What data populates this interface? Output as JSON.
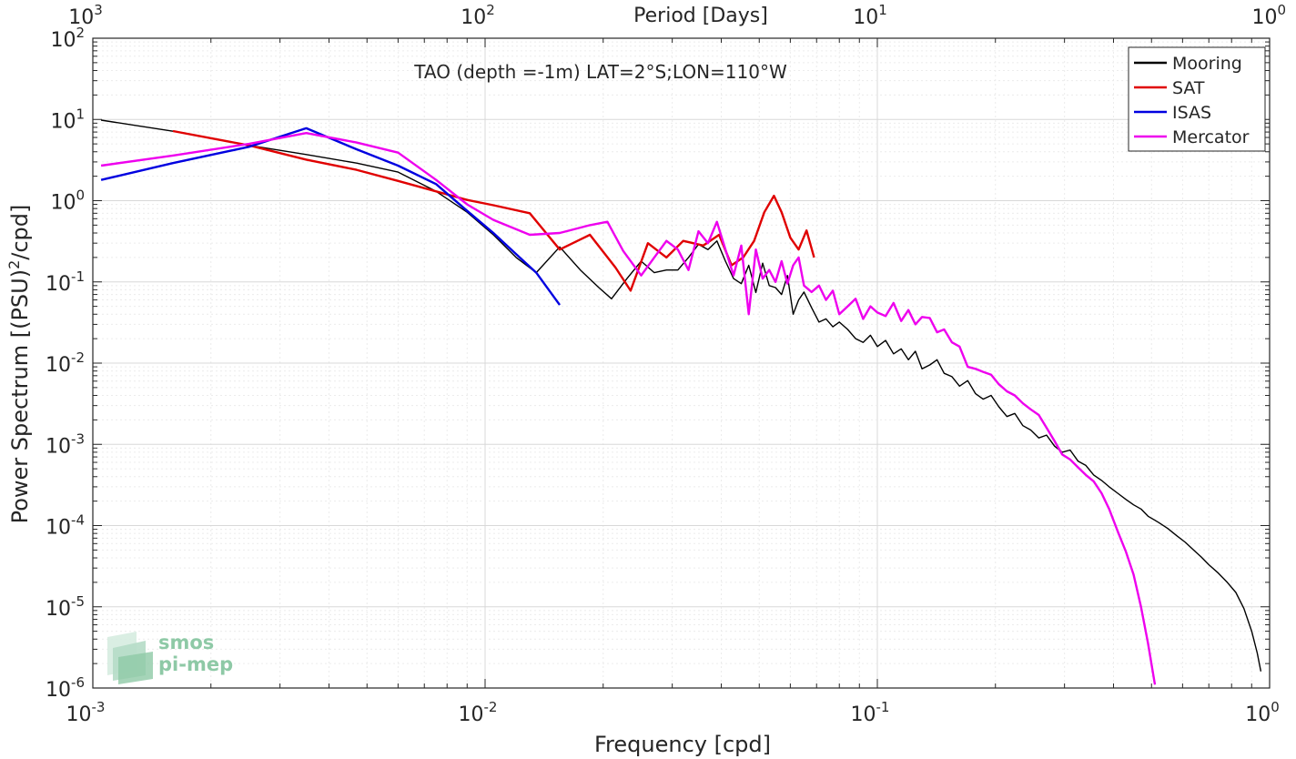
{
  "chart_data": {
    "type": "line",
    "title": "TAO (depth =-1m) LAT=2°S;LON=110°W",
    "xlabel": "Frequency [cpd]",
    "ylabel_prefix": "Power Spectrum [(PSU)",
    "ylabel_exp": "2",
    "ylabel_suffix": "/cpd]",
    "top_xlabel": "Period [Days]",
    "xscale": "log",
    "yscale": "log",
    "xlim": [
      0.001,
      1
    ],
    "ylim": [
      1e-06,
      100
    ],
    "grid": true,
    "minor_grid": true,
    "legend_position": "top-right",
    "x_ticks": [
      {
        "value": 0.001,
        "base": "10",
        "exp": "-3"
      },
      {
        "value": 0.01,
        "base": "10",
        "exp": "-2"
      },
      {
        "value": 0.1,
        "base": "10",
        "exp": "-1"
      },
      {
        "value": 1,
        "base": "10",
        "exp": "0"
      }
    ],
    "y_ticks": [
      {
        "value": 1e-06,
        "base": "10",
        "exp": "-6"
      },
      {
        "value": 1e-05,
        "base": "10",
        "exp": "-5"
      },
      {
        "value": 0.0001,
        "base": "10",
        "exp": "-4"
      },
      {
        "value": 0.001,
        "base": "10",
        "exp": "-3"
      },
      {
        "value": 0.01,
        "base": "10",
        "exp": "-2"
      },
      {
        "value": 0.1,
        "base": "10",
        "exp": "-1"
      },
      {
        "value": 1,
        "base": "10",
        "exp": "0"
      },
      {
        "value": 10,
        "base": "10",
        "exp": "1"
      },
      {
        "value": 100,
        "base": "10",
        "exp": "2"
      }
    ],
    "top_ticks": [
      {
        "freq": 0.001,
        "base": "10",
        "exp": "3"
      },
      {
        "freq": 0.01,
        "base": "10",
        "exp": "2"
      },
      {
        "freq": 0.1,
        "base": "10",
        "exp": "1"
      },
      {
        "freq": 1,
        "base": "10",
        "exp": "0"
      }
    ],
    "series": [
      {
        "name": "Mooring",
        "color": "#000000",
        "x": [
          0.00105,
          0.00165,
          0.0025,
          0.0035,
          0.0047,
          0.006,
          0.0075,
          0.009,
          0.0105,
          0.012,
          0.0135,
          0.0155,
          0.0175,
          0.0195,
          0.021,
          0.023,
          0.025,
          0.027,
          0.029,
          0.031,
          0.033,
          0.035,
          0.037,
          0.039,
          0.041,
          0.043,
          0.045,
          0.047,
          0.049,
          0.051,
          0.053,
          0.055,
          0.057,
          0.059,
          0.061,
          0.063,
          0.065,
          0.068,
          0.071,
          0.074,
          0.077,
          0.08,
          0.084,
          0.088,
          0.092,
          0.096,
          0.1,
          0.105,
          0.11,
          0.115,
          0.12,
          0.125,
          0.13,
          0.136,
          0.142,
          0.148,
          0.155,
          0.162,
          0.17,
          0.178,
          0.186,
          0.195,
          0.204,
          0.214,
          0.224,
          0.235,
          0.246,
          0.258,
          0.27,
          0.283,
          0.296,
          0.31,
          0.325,
          0.34,
          0.356,
          0.373,
          0.39,
          0.41,
          0.43,
          0.45,
          0.47,
          0.49,
          0.52,
          0.55,
          0.58,
          0.61,
          0.64,
          0.67,
          0.7,
          0.74,
          0.78,
          0.82,
          0.86,
          0.9,
          0.93,
          0.95
        ],
        "y": [
          9.8,
          7.0,
          4.8,
          3.7,
          2.9,
          2.25,
          1.3,
          0.72,
          0.38,
          0.2,
          0.13,
          0.27,
          0.14,
          0.085,
          0.062,
          0.11,
          0.18,
          0.13,
          0.14,
          0.14,
          0.2,
          0.29,
          0.25,
          0.32,
          0.18,
          0.11,
          0.095,
          0.16,
          0.074,
          0.17,
          0.09,
          0.085,
          0.07,
          0.12,
          0.04,
          0.06,
          0.075,
          0.048,
          0.032,
          0.035,
          0.028,
          0.032,
          0.026,
          0.02,
          0.018,
          0.022,
          0.016,
          0.019,
          0.013,
          0.015,
          0.011,
          0.014,
          0.0085,
          0.0095,
          0.011,
          0.0075,
          0.0068,
          0.0052,
          0.0061,
          0.0042,
          0.0036,
          0.004,
          0.0029,
          0.0022,
          0.0024,
          0.0017,
          0.0015,
          0.0012,
          0.0013,
          0.00095,
          0.0008,
          0.00085,
          0.00062,
          0.00055,
          0.00042,
          0.00036,
          0.0003,
          0.00025,
          0.00021,
          0.00018,
          0.00016,
          0.00013,
          0.00011,
          9.2e-05,
          7.5e-05,
          6.2e-05,
          5e-05,
          4.1e-05,
          3.3e-05,
          2.6e-05,
          2e-05,
          1.5e-05,
          9.5e-06,
          5e-06,
          2.7e-06,
          1.6e-06
        ]
      },
      {
        "name": "SAT",
        "color": "#e00000",
        "x": [
          0.0016,
          0.0025,
          0.0035,
          0.0047,
          0.006,
          0.0075,
          0.009,
          0.0105,
          0.013,
          0.0155,
          0.0185,
          0.0215,
          0.0235,
          0.026,
          0.029,
          0.032,
          0.036,
          0.0395,
          0.0425,
          0.0455,
          0.0485,
          0.0515,
          0.0545,
          0.057,
          0.06,
          0.063,
          0.066,
          0.069
        ],
        "y": [
          7.2,
          4.8,
          3.2,
          2.4,
          1.75,
          1.3,
          1.02,
          0.88,
          0.7,
          0.25,
          0.38,
          0.15,
          0.078,
          0.3,
          0.2,
          0.32,
          0.28,
          0.38,
          0.16,
          0.2,
          0.32,
          0.72,
          1.15,
          0.72,
          0.35,
          0.25,
          0.43,
          0.2
        ]
      },
      {
        "name": "ISAS",
        "color": "#0000e0",
        "x": [
          0.00105,
          0.0016,
          0.0025,
          0.0035,
          0.0047,
          0.006,
          0.0075,
          0.009,
          0.0105,
          0.012,
          0.0135,
          0.0155
        ],
        "y": [
          1.8,
          2.9,
          4.6,
          7.8,
          4.3,
          2.7,
          1.6,
          0.75,
          0.4,
          0.22,
          0.13,
          0.052
        ]
      },
      {
        "name": "Mercator",
        "color": "#ee00ee",
        "x": [
          0.00105,
          0.0016,
          0.0025,
          0.0035,
          0.0047,
          0.006,
          0.0075,
          0.009,
          0.0105,
          0.013,
          0.0155,
          0.0185,
          0.0205,
          0.0225,
          0.025,
          0.027,
          0.029,
          0.031,
          0.033,
          0.035,
          0.037,
          0.039,
          0.041,
          0.043,
          0.045,
          0.047,
          0.049,
          0.051,
          0.053,
          0.055,
          0.057,
          0.059,
          0.061,
          0.063,
          0.065,
          0.068,
          0.071,
          0.074,
          0.077,
          0.08,
          0.084,
          0.088,
          0.092,
          0.096,
          0.1,
          0.105,
          0.11,
          0.115,
          0.12,
          0.125,
          0.13,
          0.136,
          0.142,
          0.148,
          0.155,
          0.162,
          0.17,
          0.178,
          0.186,
          0.195,
          0.204,
          0.214,
          0.224,
          0.235,
          0.246,
          0.258,
          0.27,
          0.283,
          0.296,
          0.31,
          0.325,
          0.34,
          0.356,
          0.373,
          0.39,
          0.41,
          0.43,
          0.45,
          0.47,
          0.49,
          0.51
        ],
        "y": [
          2.7,
          3.6,
          5.0,
          6.8,
          5.2,
          3.9,
          1.8,
          0.9,
          0.58,
          0.38,
          0.4,
          0.5,
          0.55,
          0.24,
          0.12,
          0.2,
          0.32,
          0.25,
          0.14,
          0.42,
          0.3,
          0.55,
          0.25,
          0.12,
          0.28,
          0.04,
          0.25,
          0.11,
          0.14,
          0.1,
          0.18,
          0.095,
          0.16,
          0.2,
          0.09,
          0.075,
          0.09,
          0.06,
          0.078,
          0.04,
          0.05,
          0.062,
          0.035,
          0.05,
          0.042,
          0.038,
          0.055,
          0.033,
          0.045,
          0.03,
          0.037,
          0.036,
          0.024,
          0.026,
          0.018,
          0.016,
          0.009,
          0.0085,
          0.0078,
          0.0072,
          0.0055,
          0.0045,
          0.004,
          0.0032,
          0.0027,
          0.0023,
          0.0016,
          0.0011,
          0.00075,
          0.00065,
          0.00052,
          0.00042,
          0.00035,
          0.00025,
          0.00016,
          8.5e-05,
          4.8e-05,
          2.5e-05,
          1e-05,
          3.5e-06,
          1.1e-06
        ]
      }
    ]
  },
  "logo": {
    "line1": "smos",
    "line2": "pi-mep"
  }
}
